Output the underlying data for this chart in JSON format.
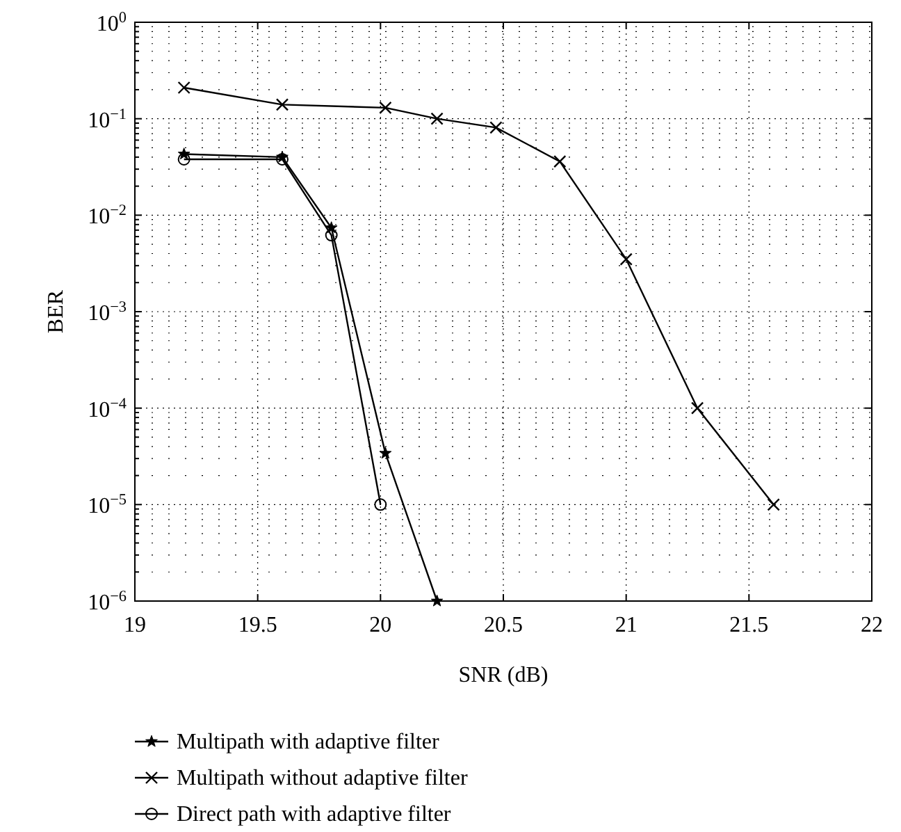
{
  "chart_data": {
    "type": "line",
    "xlabel": "SNR (dB)",
    "ylabel": "BER",
    "log": "y",
    "grid": true,
    "legend": "bottom",
    "xlim": [
      19,
      22
    ],
    "xticks": [
      19,
      19.5,
      20,
      20.5,
      21,
      21.5,
      22
    ],
    "ylim": [
      1e-06,
      1
    ],
    "yticks": [
      {
        "value": 1e-06,
        "label": "10$^{−6}$"
      },
      {
        "value": 1e-05,
        "label": "10$^{−5}$"
      },
      {
        "value": 0.0001,
        "label": "10$^{−4}$"
      },
      {
        "value": 0.001,
        "label": "10$^{−3}$"
      },
      {
        "value": 0.01,
        "label": "10$^{−2}$"
      },
      {
        "value": 0.1,
        "label": "10$^{−1}$"
      },
      {
        "value": 1,
        "label": "10$^{0}$"
      }
    ],
    "series": [
      {
        "name": "Multipath with adaptive filter",
        "color": "#000000",
        "marker": "star",
        "x": [
          19.2,
          19.6,
          19.8,
          20.02,
          20.23
        ],
        "values": [
          0.043,
          0.04,
          0.0074,
          3.4e-05,
          1e-06
        ]
      },
      {
        "name": "Multipath without adaptive filter",
        "color": "#000000",
        "marker": "cross",
        "x": [
          19.2,
          19.6,
          20.02,
          20.23,
          20.47,
          20.73,
          21.0,
          21.29,
          21.6
        ],
        "values": [
          0.21,
          0.14,
          0.13,
          0.1,
          0.081,
          0.036,
          0.0035,
          0.0001,
          1e-05
        ]
      },
      {
        "name": "Direct path with adaptive filter",
        "color": "#000000",
        "marker": "circle",
        "x": [
          19.2,
          19.6,
          19.8,
          20.0
        ],
        "values": [
          0.038,
          0.038,
          0.0062,
          1e-05
        ]
      }
    ]
  }
}
